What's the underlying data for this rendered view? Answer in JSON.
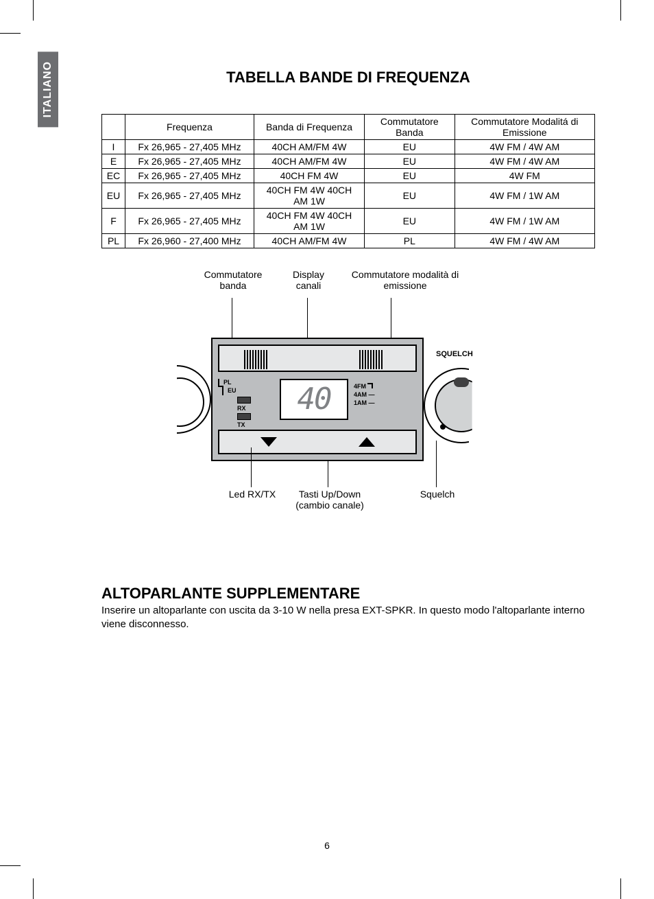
{
  "language_tab": "ITALIANO",
  "title": "TABELLA BANDE DI FREQUENZA",
  "table": {
    "headers": [
      "",
      "Frequenza",
      "Banda di Frequenza",
      "Commutatore Banda",
      "Commutatore Modalitá di Emissione"
    ],
    "rows": [
      [
        "I",
        "Fx 26,965 - 27,405 MHz",
        "40CH AM/FM 4W",
        "EU",
        "4W FM / 4W AM"
      ],
      [
        "E",
        "Fx 26,965 - 27,405 MHz",
        "40CH AM/FM 4W",
        "EU",
        "4W FM / 4W AM"
      ],
      [
        "EC",
        "Fx 26,965 - 27,405 MHz",
        "40CH FM 4W",
        "EU",
        "4W FM"
      ],
      [
        "EU",
        "Fx 26,965 - 27,405 MHz",
        "40CH FM 4W 40CH AM 1W",
        "EU",
        "4W FM / 1W AM"
      ],
      [
        "F",
        "Fx 26,965 - 27,405 MHz",
        "40CH FM 4W 40CH AM 1W",
        "EU",
        "4W FM / 1W AM"
      ],
      [
        "PL",
        "Fx 26,960 - 27,400 MHz",
        "40CH AM/FM 4W",
        "PL",
        "4W FM / 4W AM"
      ]
    ]
  },
  "diagram": {
    "top_labels": {
      "band_switch": "Commutatore banda",
      "channel_display": "Display canali",
      "emission_switch": "Commutatore modalità di emissione"
    },
    "panel": {
      "pl": "PL",
      "eu": "EU",
      "rx": "RX",
      "tx": "TX",
      "display_value": "40",
      "mode_4fm": "4FM",
      "mode_4am": "4AM",
      "mode_1am": "1AM",
      "squelch": "SQUELCH"
    },
    "bottom_labels": {
      "led": "Led RX/TX",
      "updown": "Tasti Up/Down (cambio canale)",
      "squelch": "Squelch"
    }
  },
  "section2_title": "ALTOPARLANTE SUPPLEMENTARE",
  "section2_body": "Inserire un altoparlante con uscita da 3-10 W nella presa EXT-SPKR. In questo modo l'altoparlante interno viene disconnesso.",
  "page_number": "6",
  "colors": {
    "tab_bg": "#6d6e71",
    "panel_bg": "#bcbec0",
    "panel_light": "#e6e7e8",
    "display_digit": "#808285"
  }
}
